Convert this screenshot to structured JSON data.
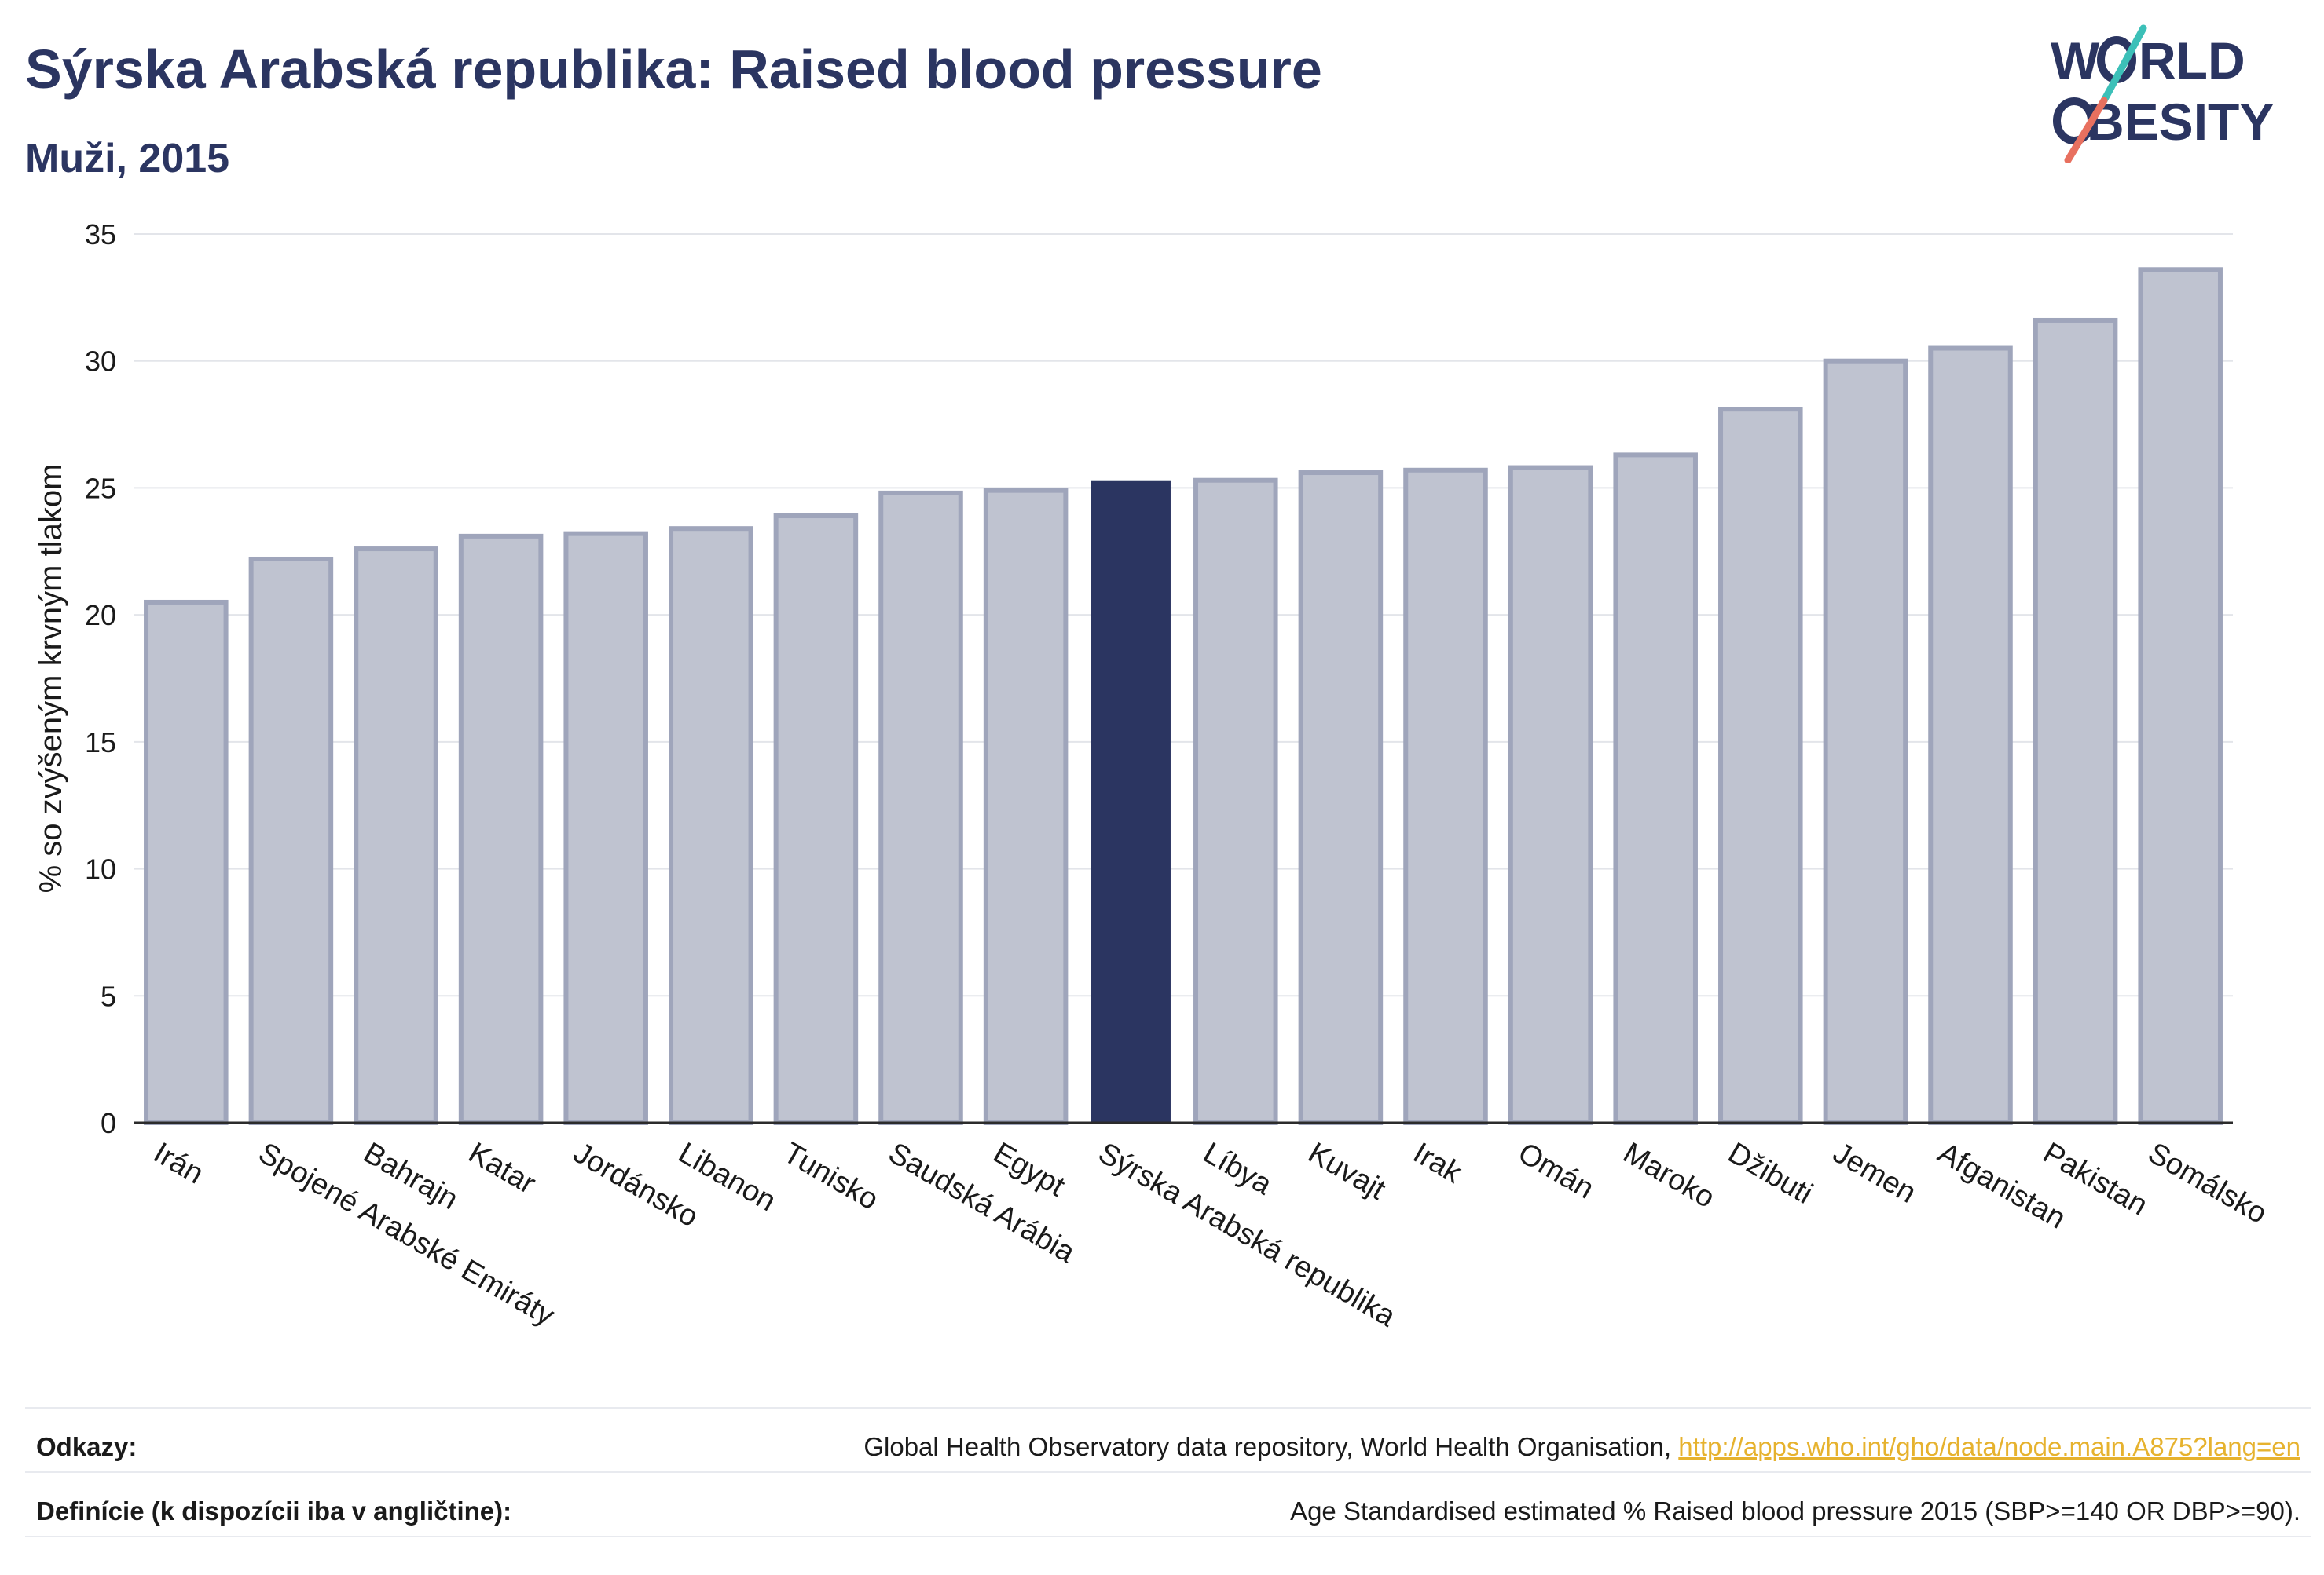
{
  "title": "Sýrska Arabská republika: Raised blood pressure",
  "subtitle": "Muži, 2015",
  "logo": {
    "line1": "W",
    "line1b": "RLD",
    "line2": "BESITY"
  },
  "footer": {
    "sources_label": "Odkazy:",
    "sources_text": "Global Health Observatory data repository, World Health Organisation, ",
    "sources_link": "http://apps.who.int/gho/data/node.main.A875?lang=en",
    "definitions_label": "Definície (k dispozícii iba v angličtine):",
    "definitions_text": "Age Standardised estimated % Raised blood pressure 2015 (SBP>=140 OR DBP>=90)."
  },
  "chart_data": {
    "type": "bar",
    "ylabel": "% so zvýšeným krvným tlakom",
    "xlabel": "",
    "ylim": [
      0,
      35
    ],
    "yticks": [
      0,
      5,
      10,
      15,
      20,
      25,
      30,
      35
    ],
    "grid": true,
    "highlight": "Sýrska Arabská republika",
    "colors": {
      "highlight": "#2b3561",
      "bar": "#bfc3d0",
      "bar_border": "#9fa5bb",
      "grid": "#e3e5ea",
      "axis": "#2b2b2b"
    },
    "categories": [
      "Irán",
      "Spojené Arabské Emiráty",
      "Bahrajn",
      "Katar",
      "Jordánsko",
      "Libanon",
      "Tunisko",
      "Saudská Arábia",
      "Egypt",
      "Sýrska Arabská republika",
      "Líbya",
      "Kuvajt",
      "Irak",
      "Omán",
      "Maroko",
      "Džibuti",
      "Jemen",
      "Afganistan",
      "Pakistan",
      "Somálsko"
    ],
    "values": [
      20.5,
      22.2,
      22.6,
      23.1,
      23.2,
      23.4,
      23.9,
      24.8,
      24.9,
      25.3,
      25.3,
      25.6,
      25.7,
      25.8,
      26.3,
      28.1,
      30.0,
      30.5,
      31.6,
      33.6
    ]
  }
}
